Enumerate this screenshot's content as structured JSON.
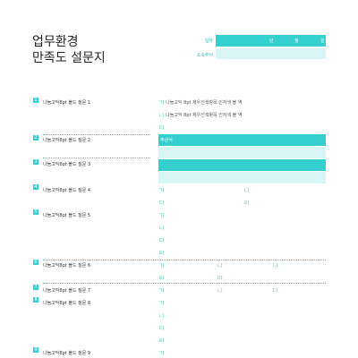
{
  "title": {
    "line1": "업무환경",
    "line2": "만족도 설문지"
  },
  "header": {
    "date_label": "일자",
    "dept_label": "소속부서",
    "year": "년",
    "month": "월",
    "day": "일"
  },
  "questions": [
    {
      "num": "1",
      "text": "나눔고딕8pt 볼드 질문 1"
    },
    {
      "num": "2",
      "text": "나눔고딕8pt 볼드 질문 2"
    },
    {
      "num": "3",
      "text": "나눔고딕8pt 볼드 질문 3"
    },
    {
      "num": "4",
      "text": "나눔고딕8pt 볼드 질문 4"
    },
    {
      "num": "5",
      "text": "나눔고딕8pt 볼드 질문 5"
    },
    {
      "num": "6",
      "text": "나눔고딕8pt 볼드 질문 6"
    },
    {
      "num": "7",
      "text": "나눔고딕8pt 볼드 질문 7"
    },
    {
      "num": "8",
      "text": "나눔고딕8pt 볼드 질문 8"
    },
    {
      "num": "9",
      "text": "나눔고딕8pt 볼드 질문 9"
    }
  ],
  "q1_options": [
    {
      "marker": "ㄱ)",
      "text": "나눔고딕 8pt 체우선색항목 인자색 볼 역"
    },
    {
      "marker": "ㄴ)",
      "text": "나눔고딕 8pt 체우선색항목 인자색 볼 역"
    },
    {
      "marker": "ㄷ)",
      "text": ""
    }
  ],
  "q2_label": "주관식",
  "markers": {
    "a": "ㄱ)",
    "b": "ㄴ)",
    "c": "ㄷ)",
    "d": "ㄹ)",
    "e": "ㅁ)"
  },
  "colors": {
    "accent": "#34cfcf",
    "accent_light": "#d8f6f6"
  }
}
